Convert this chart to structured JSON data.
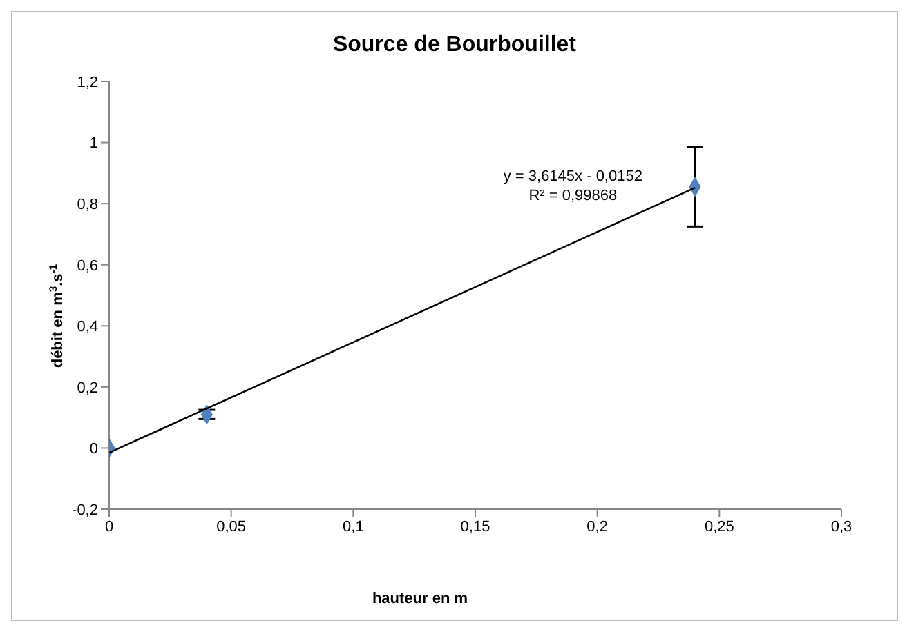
{
  "chart_data": {
    "type": "scatter",
    "title": "Source de Bourbouillet",
    "xlabel": "hauteur en m",
    "ylabel": "débit en m$^{3}$.s$^{-1}$",
    "x": [
      0,
      0.04,
      0.24
    ],
    "series": [
      {
        "color": "#4f81bd",
        "values": [
          0,
          0.11,
          0.855
        ],
        "errors": [
          null,
          0.015,
          [
            0.725,
            0.985
          ]
        ],
        "marker": "diamond"
      },
      {
        "type": "line",
        "color": "#000000",
        "x": [
          0,
          0.24
        ],
        "values": [
          -0.015,
          0.852
        ],
        "marker": "none",
        "line_style": "solid"
      }
    ],
    "annotations": [
      "y = 3,6145x - 0,0152",
      "R² = 0,99868"
    ],
    "xlim": [
      0,
      0.3
    ],
    "xticks": [
      0,
      {
        "value": 0.05,
        "label": "0,05"
      },
      {
        "value": 0.1,
        "label": "0,1"
      },
      {
        "value": 0.15,
        "label": "0,15"
      },
      {
        "value": 0.2,
        "label": "0,2"
      },
      {
        "value": 0.25,
        "label": "0,25"
      },
      {
        "value": 0.3,
        "label": "0,3"
      }
    ],
    "ylim": [
      -0.2,
      1.2
    ],
    "yticks": [
      {
        "value": -0.2,
        "label": "-0,2"
      },
      0,
      {
        "value": 0.2,
        "label": "0,2"
      },
      {
        "value": 0.4,
        "label": "0,4"
      },
      {
        "value": 0.6,
        "label": "0,6"
      },
      {
        "value": 0.8,
        "label": "0,8"
      },
      1,
      {
        "value": 1.2,
        "label": "1,2"
      }
    ],
    "grid": false
  }
}
